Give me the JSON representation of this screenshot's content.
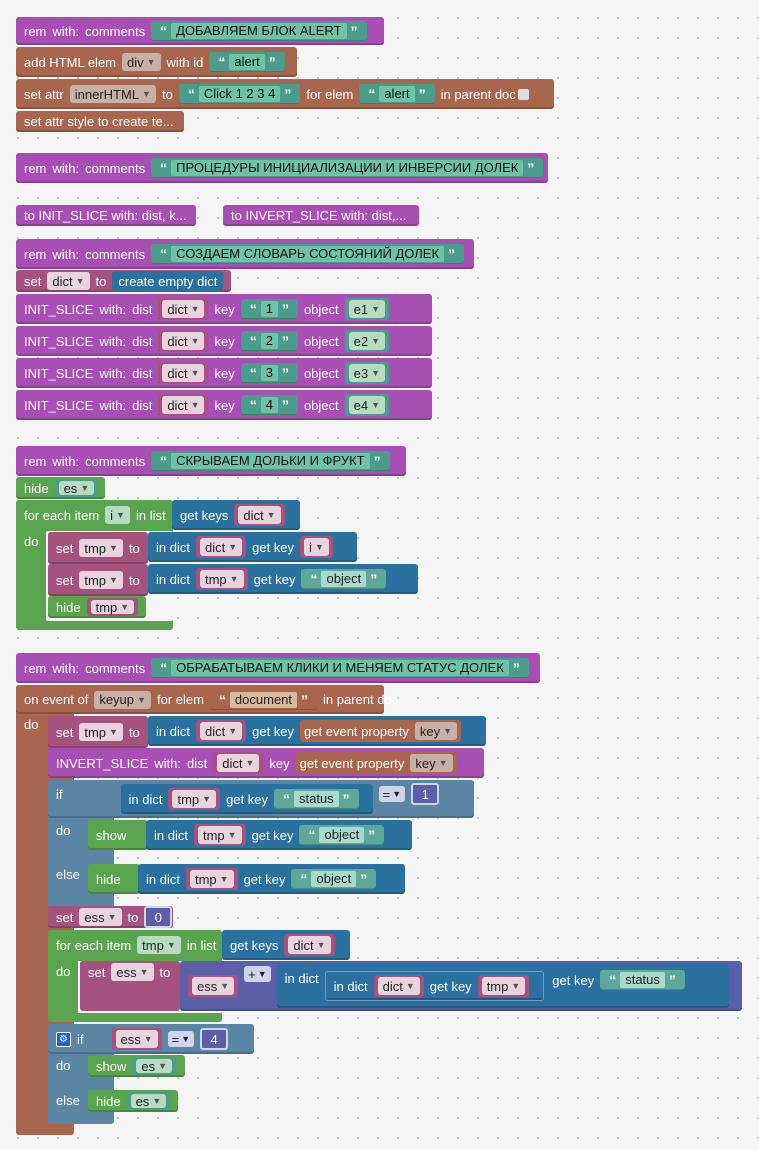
{
  "b1": {
    "rem": "rem",
    "with": "with:",
    "comments": "comments",
    "text": "ДОБАВЛЯЕМ БЛОК ALERT"
  },
  "b2": {
    "label": "add HTML elem",
    "tag": "div",
    "withid": "with id",
    "id": "alert"
  },
  "b3": {
    "label": "set attr",
    "attr": "innerHTML",
    "to": "to",
    "value": "Click 1 2 3 4",
    "forelem": "for elem",
    "elem": "alert",
    "inparent": "in parent doc"
  },
  "b4": {
    "label": "set attr style to create te..."
  },
  "b5": {
    "rem": "rem",
    "with": "with:",
    "comments": "comments",
    "text": "ПРОЦЕДУРЫ ИНИЦИАЛИЗАЦИИ И ИНВЕРСИИ ДОЛЕК"
  },
  "b6": {
    "label": "to INIT_SLICE with: dist, k..."
  },
  "b7": {
    "label": "to INVERT_SLICE with: dist,..."
  },
  "b8": {
    "rem": "rem",
    "with": "with:",
    "comments": "comments",
    "text": "СОЗДАЕМ СЛОВАРЬ СОСТОЯНИЙ ДОЛЕК"
  },
  "b9": {
    "set": "set",
    "var": "dict",
    "to": "to",
    "value": "create empty dict"
  },
  "init_label": "INIT_SLICE",
  "init_with": "with:",
  "init_dist": "dist",
  "init_key": "key",
  "init_object": "object",
  "init_rows": [
    {
      "dict": "dict",
      "key": "1",
      "obj": "e1"
    },
    {
      "dict": "dict",
      "key": "2",
      "obj": "e2"
    },
    {
      "dict": "dict",
      "key": "3",
      "obj": "e3"
    },
    {
      "dict": "dict",
      "key": "4",
      "obj": "e4"
    }
  ],
  "b10": {
    "rem": "rem",
    "with": "with:",
    "comments": "comments",
    "text": "СКРЫВАЕМ ДОЛЬКИ И ФРУКТ"
  },
  "b11": {
    "hide": "hide",
    "var": "es"
  },
  "b12": {
    "foreach": "for each item",
    "item": "i",
    "inlist": "in list",
    "getkeys": "get keys",
    "dict": "dict",
    "do": "do"
  },
  "b13": {
    "set": "set",
    "var": "tmp",
    "to": "to",
    "indict": "in dict",
    "dict": "dict",
    "getkey": "get key",
    "key": "i"
  },
  "b14": {
    "set": "set",
    "var": "tmp",
    "to": "to",
    "indict": "in dict",
    "dict": "tmp",
    "getkey": "get key",
    "key": "object"
  },
  "b15": {
    "hide": "hide",
    "var": "tmp"
  },
  "b16": {
    "rem": "rem",
    "with": "with:",
    "comments": "comments",
    "text": "ОБРАБАТЫВАЕМ КЛИКИ И МЕНЯЕМ СТАТУС ДОЛЕК"
  },
  "b17": {
    "onevent": "on event of",
    "event": "keyup",
    "forelem": "for elem",
    "elem": "document",
    "inparent": "in parent doc",
    "do": "do"
  },
  "b18": {
    "set": "set",
    "var": "tmp",
    "to": "to",
    "indict": "in dict",
    "dict": "dict",
    "getkey": "get key",
    "getprop": "get event property",
    "prop": "key"
  },
  "b19": {
    "label": "INVERT_SLICE",
    "with": "with:",
    "dist": "dist",
    "dict": "dict",
    "key": "key",
    "getprop": "get event property",
    "prop": "key"
  },
  "b20": {
    "if": "if",
    "indict": "in dict",
    "dict": "tmp",
    "getkey": "get key",
    "key": "status",
    "op": "=",
    "num": "1",
    "do": "do",
    "else": "else"
  },
  "b21": {
    "show": "show",
    "indict": "in dict",
    "dict": "tmp",
    "getkey": "get key",
    "key": "object"
  },
  "b22": {
    "hide": "hide",
    "indict": "in dict",
    "dict": "tmp",
    "getkey": "get key",
    "key": "object"
  },
  "b23": {
    "set": "set",
    "var": "ess",
    "to": "to",
    "num": "0"
  },
  "b24": {
    "foreach": "for each item",
    "item": "tmp",
    "inlist": "in list",
    "getkeys": "get keys",
    "dict": "dict",
    "do": "do"
  },
  "b25": {
    "set": "set",
    "var": "ess",
    "to": "to",
    "v": "ess",
    "op": "+",
    "indict": "in dict",
    "indict2": "in dict",
    "dict": "dict",
    "getkey": "get key",
    "key": "tmp",
    "getkey2": "get key",
    "key2": "status"
  },
  "b26": {
    "if": "if",
    "v": "ess",
    "op": "=",
    "num": "4",
    "do": "do",
    "else": "else"
  },
  "b27": {
    "show": "show",
    "var": "es"
  },
  "b28": {
    "hide": "hide",
    "var": "es"
  },
  "colors": {
    "purple": "#a74fb3",
    "brown": "#a8664e",
    "teal": "#4a9d8a",
    "green": "#5ba44f",
    "blue": "#2a71a0",
    "magenta": "#a5527e",
    "indigo": "#5b5fa8",
    "steel": "#5b85a5"
  }
}
